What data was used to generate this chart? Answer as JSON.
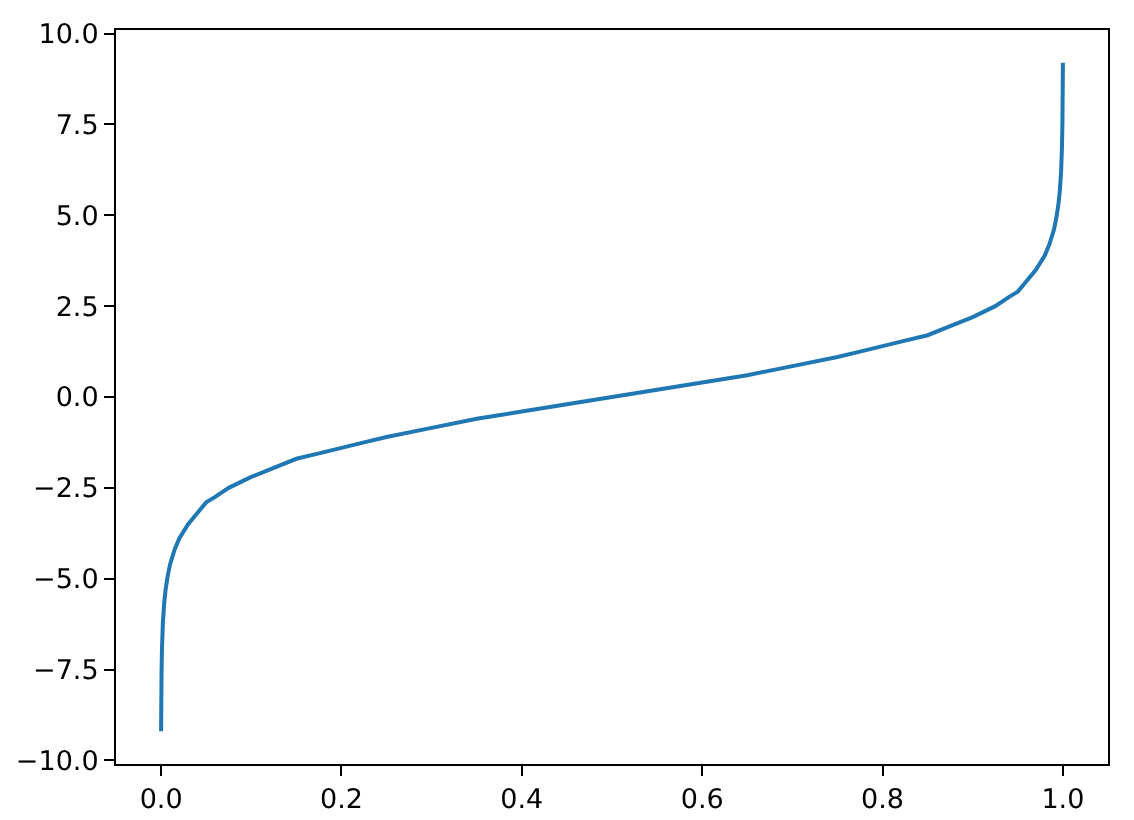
{
  "chart_data": {
    "type": "line",
    "x": [
      0.0,
      0.0005,
      0.001,
      0.002,
      0.0035,
      0.005,
      0.0075,
      0.01,
      0.015,
      0.02,
      0.03,
      0.04,
      0.05,
      0.06,
      0.075,
      0.1,
      0.125,
      0.15,
      0.175,
      0.2,
      0.225,
      0.25,
      0.3,
      0.35,
      0.4,
      0.45,
      0.5,
      0.55,
      0.6,
      0.65,
      0.7,
      0.75,
      0.775,
      0.8,
      0.825,
      0.85,
      0.875,
      0.9,
      0.925,
      0.94,
      0.95,
      0.96,
      0.97,
      0.98,
      0.985,
      0.99,
      0.9925,
      0.995,
      0.9965,
      0.998,
      0.999,
      0.9995,
      1.0
    ],
    "values": [
      -9.2,
      -7.6,
      -6.9,
      -6.2,
      -5.65,
      -5.3,
      -4.9,
      -4.6,
      -4.2,
      -3.9,
      -3.5,
      -3.2,
      -2.9,
      -2.75,
      -2.5,
      -2.2,
      -1.95,
      -1.7,
      -1.55,
      -1.4,
      -1.25,
      -1.1,
      -0.85,
      -0.6,
      -0.4,
      -0.2,
      0.0,
      0.2,
      0.4,
      0.6,
      0.85,
      1.1,
      1.25,
      1.4,
      1.55,
      1.7,
      1.95,
      2.2,
      2.5,
      2.75,
      2.9,
      3.2,
      3.5,
      3.9,
      4.2,
      4.6,
      4.9,
      5.3,
      5.65,
      6.2,
      6.9,
      7.6,
      9.2
    ],
    "color": "#1f77b4",
    "xlim": [
      -0.05,
      1.05
    ],
    "ylim": [
      -10.1,
      10.1
    ],
    "xticks": [
      {
        "value": 0,
        "label": "0.0"
      },
      0.2,
      0.4,
      0.6,
      0.8,
      {
        "value": 1,
        "label": "1.0"
      }
    ],
    "yticks": [
      {
        "value": -10,
        "label": "−10.0"
      },
      {
        "value": -7.5,
        "label": "−7.5"
      },
      {
        "value": -5,
        "label": "−5.0"
      },
      {
        "value": -2.5,
        "label": "−2.5"
      },
      {
        "value": 0,
        "label": "0.0"
      },
      2.5,
      {
        "value": 5,
        "label": "5.0"
      },
      7.5,
      {
        "value": 10,
        "label": "10.0"
      }
    ]
  }
}
